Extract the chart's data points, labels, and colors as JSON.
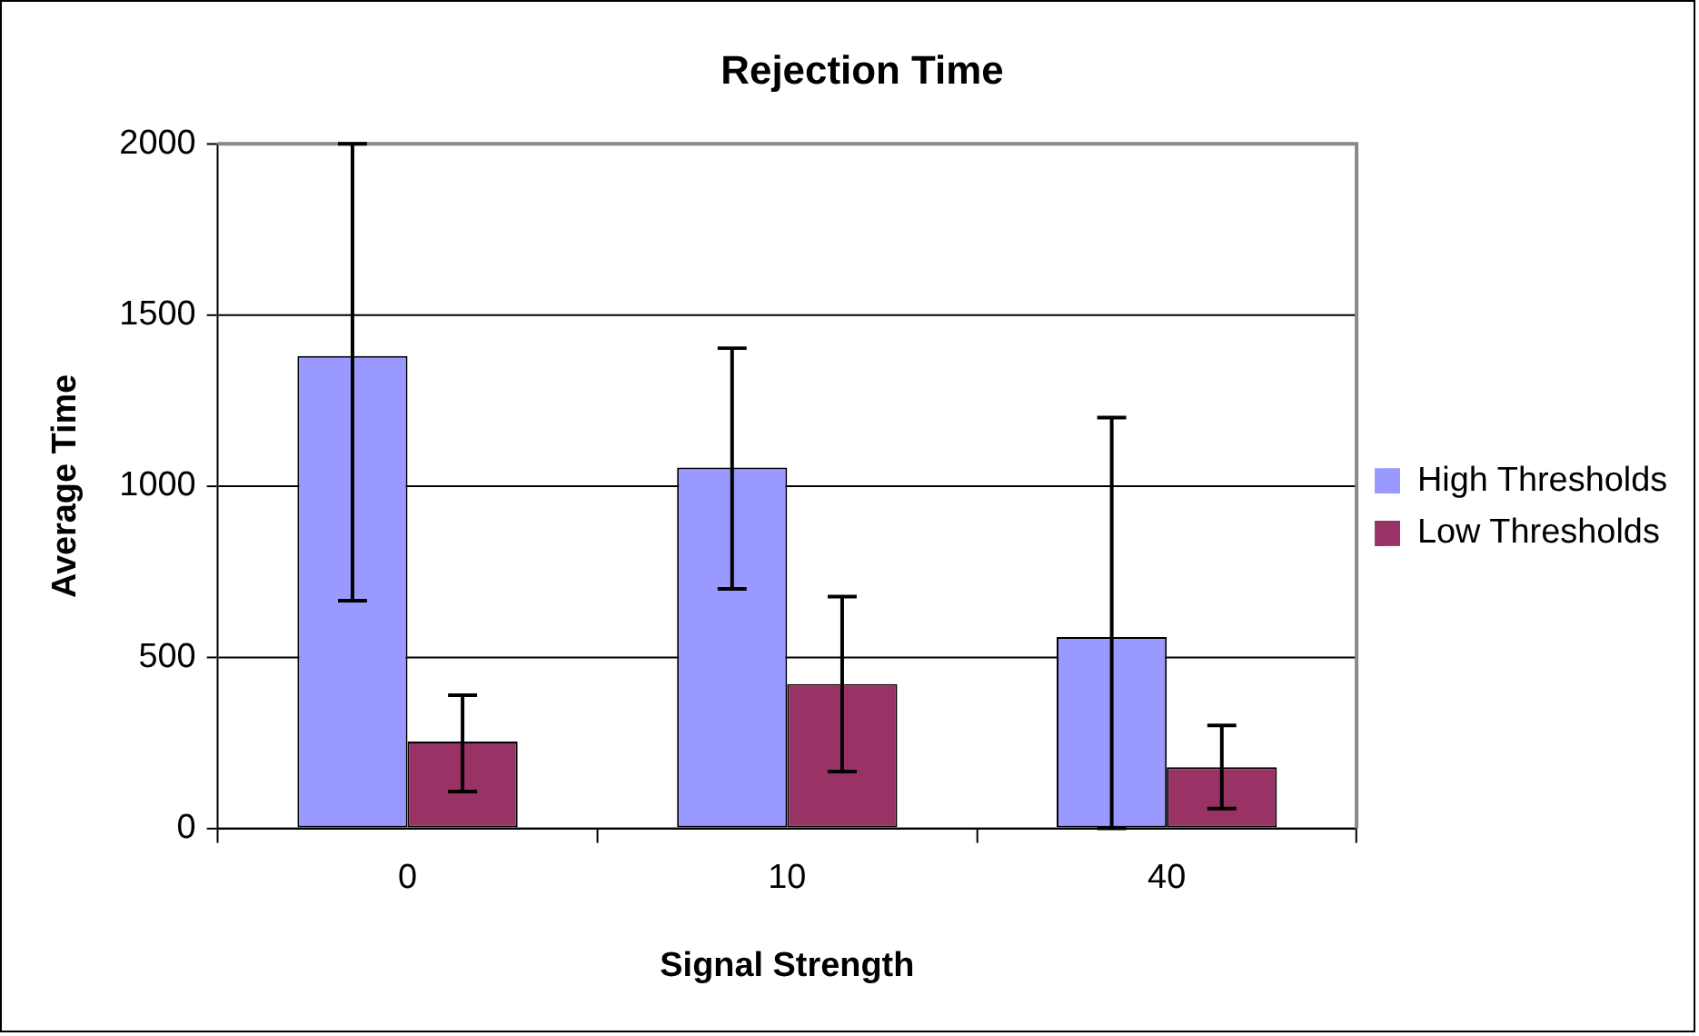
{
  "chart_data": {
    "type": "bar",
    "title": "Rejection Time",
    "xlabel": "Signal Strength",
    "ylabel": "Average Time",
    "categories": [
      "0",
      "10",
      "40"
    ],
    "series": [
      {
        "name": "High Thresholds",
        "color": "#9999ff",
        "values": [
          1380,
          1054,
          559
        ],
        "errors": [
          [
            665,
            2000
          ],
          [
            700,
            1403
          ],
          [
            0,
            1200
          ]
        ]
      },
      {
        "name": "Low Thresholds",
        "color": "#993366",
        "values": [
          254,
          422,
          179
        ],
        "errors": [
          [
            108,
            389
          ],
          [
            166,
            677
          ],
          [
            58,
            301
          ]
        ]
      }
    ],
    "ylim": [
      0,
      2000
    ],
    "yticks": [
      0,
      500,
      1000,
      1500,
      2000
    ],
    "grid": "y",
    "legend": "right"
  }
}
